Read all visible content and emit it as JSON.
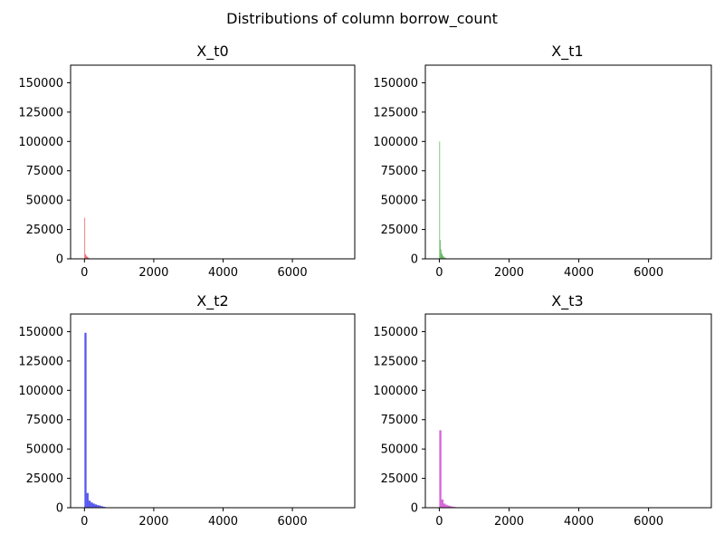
{
  "figure": {
    "suptitle": "Distributions of column borrow_count"
  },
  "chart_data": [
    {
      "type": "bar",
      "title": "X_t0",
      "color": "#e0242f",
      "xlim": [
        -400,
        7800
      ],
      "ylim": [
        0,
        165000
      ],
      "xticks": [
        0,
        2000,
        4000,
        6000
      ],
      "xtick_labels": [
        "0",
        "2000",
        "4000",
        "6000"
      ],
      "yticks": [
        0,
        25000,
        50000,
        75000,
        100000,
        125000,
        150000
      ],
      "ytick_labels": [
        "0",
        "25000",
        "50000",
        "75000",
        "100000",
        "125000",
        "150000"
      ],
      "bin_width": 20,
      "bin_starts": [
        0,
        20,
        40,
        60,
        80,
        100,
        120,
        140,
        160,
        180
      ],
      "values": [
        35000,
        4000,
        3000,
        2000,
        1500,
        1000,
        700,
        500,
        300,
        200
      ]
    },
    {
      "type": "bar",
      "title": "X_t1",
      "color": "#2ca02c",
      "xlim": [
        -400,
        7800
      ],
      "ylim": [
        0,
        165000
      ],
      "xticks": [
        0,
        2000,
        4000,
        6000
      ],
      "xtick_labels": [
        "0",
        "2000",
        "4000",
        "6000"
      ],
      "yticks": [
        0,
        25000,
        50000,
        75000,
        100000,
        125000,
        150000
      ],
      "ytick_labels": [
        "0",
        "25000",
        "50000",
        "75000",
        "100000",
        "125000",
        "150000"
      ],
      "bin_width": 20,
      "bin_starts": [
        0,
        20,
        40,
        60,
        80,
        100,
        120,
        140,
        160,
        180,
        200,
        220
      ],
      "values": [
        100000,
        16000,
        8000,
        5000,
        3500,
        2500,
        1800,
        1300,
        900,
        600,
        400,
        200
      ]
    },
    {
      "type": "bar",
      "title": "X_t2",
      "color": "#2020e8",
      "xlim": [
        -400,
        7800
      ],
      "ylim": [
        0,
        165000
      ],
      "xticks": [
        0,
        2000,
        4000,
        6000
      ],
      "xtick_labels": [
        "0",
        "2000",
        "4000",
        "6000"
      ],
      "yticks": [
        0,
        25000,
        50000,
        75000,
        100000,
        125000,
        150000
      ],
      "ytick_labels": [
        "0",
        "25000",
        "50000",
        "75000",
        "100000",
        "125000",
        "150000"
      ],
      "bin_width": 60,
      "bin_starts": [
        0,
        60,
        120,
        180,
        240,
        300,
        360,
        420,
        480,
        540,
        600,
        660
      ],
      "values": [
        149000,
        12500,
        6000,
        4500,
        3500,
        2800,
        2200,
        1800,
        1200,
        800,
        400,
        200
      ]
    },
    {
      "type": "bar",
      "title": "X_t3",
      "color": "#c832c8",
      "xlim": [
        -400,
        7800
      ],
      "ylim": [
        0,
        165000
      ],
      "xticks": [
        0,
        2000,
        4000,
        6000
      ],
      "xtick_labels": [
        "0",
        "2000",
        "4000",
        "6000"
      ],
      "yticks": [
        0,
        25000,
        50000,
        75000,
        100000,
        125000,
        150000
      ],
      "ytick_labels": [
        "0",
        "25000",
        "50000",
        "75000",
        "100000",
        "125000",
        "150000"
      ],
      "bin_width": 60,
      "bin_starts": [
        0,
        60,
        120,
        180,
        240,
        300,
        360,
        420,
        480,
        540
      ],
      "values": [
        66000,
        7000,
        3500,
        2500,
        1800,
        1300,
        900,
        600,
        400,
        200
      ]
    }
  ]
}
